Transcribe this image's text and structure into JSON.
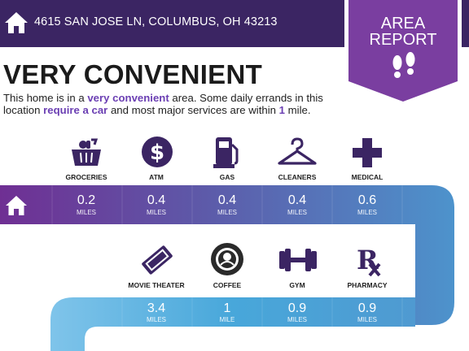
{
  "header": {
    "address": "4615 SAN JOSE LN, COLUMBUS, OH 43213",
    "home_icon": "home-icon"
  },
  "badge": {
    "line1": "AREA",
    "line2": "REPORT",
    "icon": "footprints-icon"
  },
  "headline": "VERY CONVENIENT",
  "description": {
    "part1": "This home is in a ",
    "em1": "very convenient",
    "part2": " area. Some daily errands in this location ",
    "em2": "require a car",
    "part3": " and most major services are within ",
    "em3": "1",
    "part4": " mile."
  },
  "row1": [
    {
      "label": "GROCERIES",
      "value": "0.2",
      "unit": "MILES",
      "icon": "groceries-basket-icon"
    },
    {
      "label": "ATM",
      "value": "0.4",
      "unit": "MILES",
      "icon": "atm-dollar-icon"
    },
    {
      "label": "GAS",
      "value": "0.4",
      "unit": "MILES",
      "icon": "gas-pump-icon"
    },
    {
      "label": "CLEANERS",
      "value": "0.4",
      "unit": "MILES",
      "icon": "hanger-icon"
    },
    {
      "label": "MEDICAL",
      "value": "0.6",
      "unit": "MILES",
      "icon": "medical-cross-icon"
    }
  ],
  "row2": [
    {
      "label": "MOVIE THEATER",
      "value": "3.4",
      "unit": "MILES",
      "icon": "movie-ticket-icon"
    },
    {
      "label": "COFFEE",
      "value": "1",
      "unit": "MILE",
      "icon": "coffee-logo-icon"
    },
    {
      "label": "GYM",
      "value": "0.9",
      "unit": "MILES",
      "icon": "dumbbell-icon"
    },
    {
      "label": "PHARMACY",
      "value": "0.9",
      "unit": "MILES",
      "icon": "rx-icon"
    }
  ],
  "colors": {
    "header": "#3b2563",
    "badge": "#7a3ea0",
    "accent_text": "#6b3fb3",
    "icon": "#3b2563"
  }
}
